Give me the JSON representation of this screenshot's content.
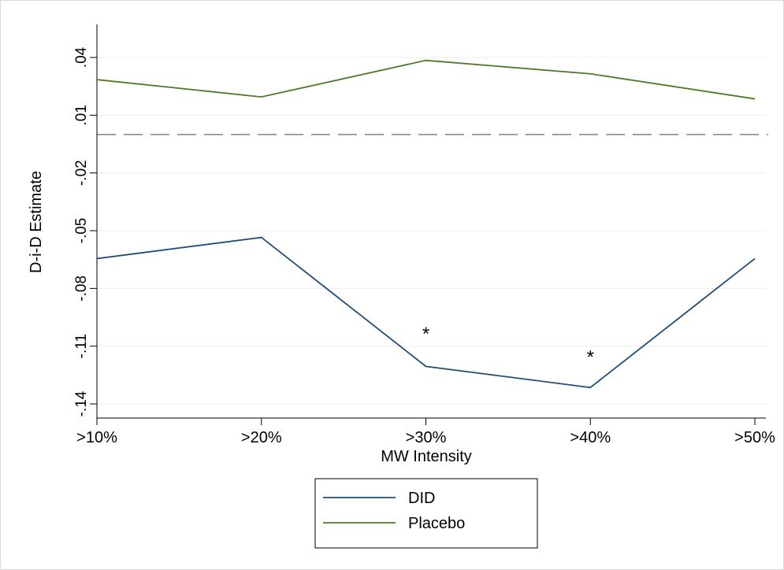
{
  "chart_data": {
    "type": "line",
    "title": "",
    "xlabel": "MW Intensity",
    "ylabel": "D-i-D Estimate",
    "categories": [
      ">10%",
      ">20%",
      ">30%",
      ">40%",
      ">50%"
    ],
    "y_ticks": [
      0.04,
      0.01,
      -0.02,
      -0.05,
      -0.08,
      -0.11,
      -0.14
    ],
    "y_tick_labels": [
      ".04",
      ".01",
      "-.02",
      "-.05",
      "-.08",
      "-.11",
      "-.14"
    ],
    "ylim": [
      -0.14,
      0.04
    ],
    "grid": true,
    "reference_line": {
      "y": 0,
      "style": "dashed"
    },
    "series": [
      {
        "name": "DID",
        "color": "#1f4e79",
        "values": [
          -0.0645,
          -0.0535,
          -0.1205,
          -0.1315,
          -0.0645
        ]
      },
      {
        "name": "Placebo",
        "color": "#4e7a27",
        "values": [
          0.0285,
          0.0195,
          0.0385,
          0.0315,
          0.0185
        ]
      }
    ],
    "annotations": [
      {
        "text": "*",
        "x": ">30%",
        "y": -0.102
      },
      {
        "text": "*",
        "x": ">40%",
        "y": -0.114
      }
    ],
    "legend": {
      "placement": "bottom",
      "entries": [
        "DID",
        "Placebo"
      ]
    }
  }
}
